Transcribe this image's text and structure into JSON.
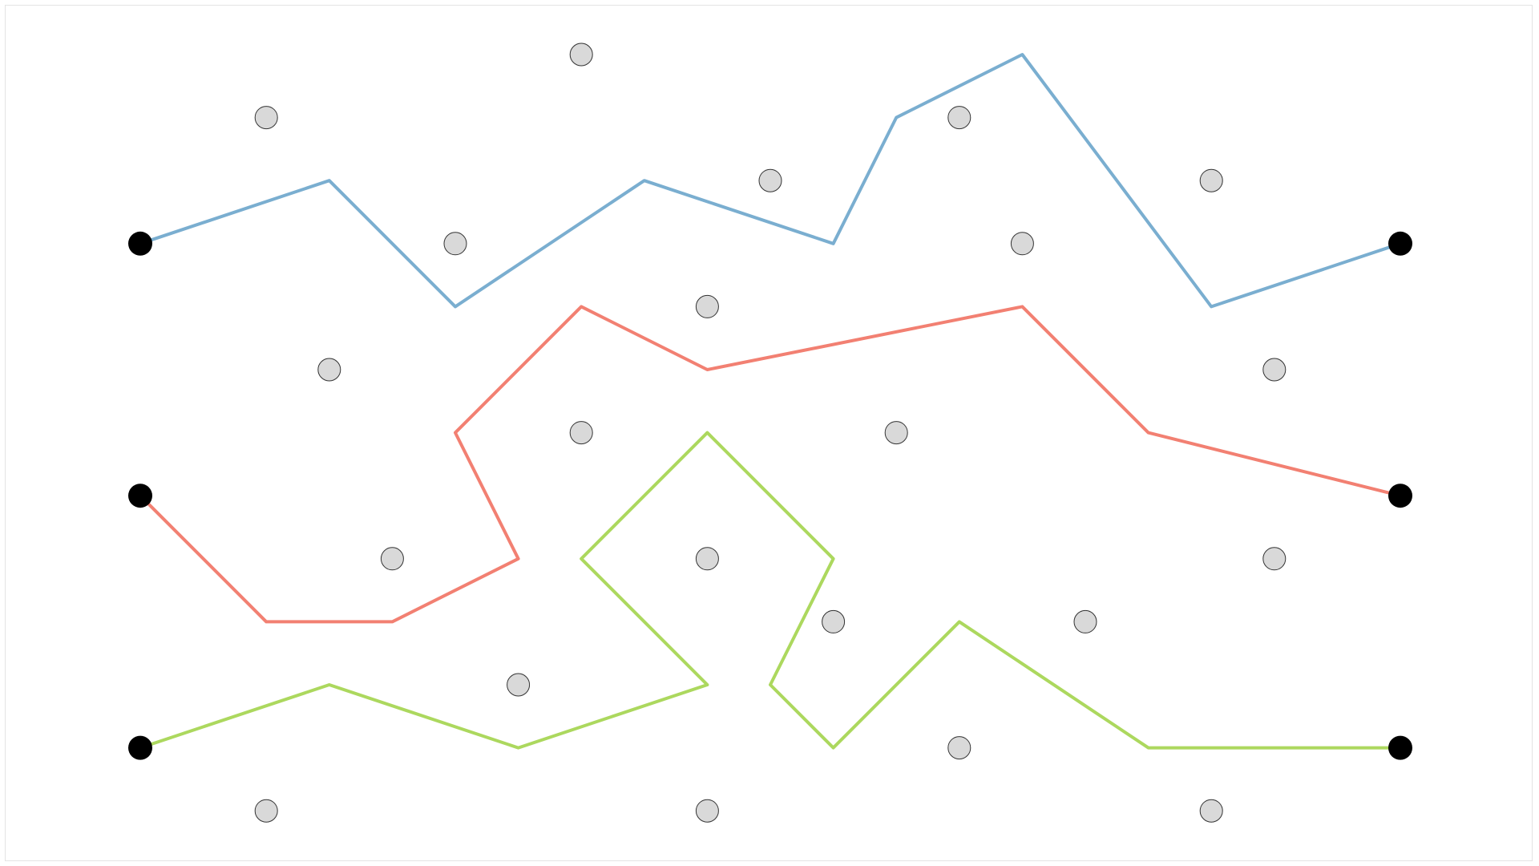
{
  "diagram": {
    "colors": {
      "background": "#ffffff",
      "frame_border": "#e3e3e3",
      "obstacle_fill": "#d9d9d9",
      "obstacle_stroke": "#333333",
      "endpoint_fill": "#000000"
    },
    "endpoints": [
      {
        "id": "left-top",
        "col": 0,
        "row": 3
      },
      {
        "id": "left-middle",
        "col": 0,
        "row": 7
      },
      {
        "id": "left-bottom",
        "col": 0,
        "row": 11
      },
      {
        "id": "right-top",
        "col": 20,
        "row": 3
      },
      {
        "id": "right-middle",
        "col": 20,
        "row": 7
      },
      {
        "id": "right-bottom",
        "col": 20,
        "row": 11
      }
    ],
    "obstacles": [
      {
        "col": 7,
        "row": 0
      },
      {
        "col": 2,
        "row": 1
      },
      {
        "col": 13,
        "row": 1
      },
      {
        "col": 10,
        "row": 2
      },
      {
        "col": 17,
        "row": 2
      },
      {
        "col": 5,
        "row": 3
      },
      {
        "col": 14,
        "row": 3
      },
      {
        "col": 9,
        "row": 4
      },
      {
        "col": 3,
        "row": 5
      },
      {
        "col": 18,
        "row": 5
      },
      {
        "col": 7,
        "row": 6
      },
      {
        "col": 12,
        "row": 6
      },
      {
        "col": 4,
        "row": 8
      },
      {
        "col": 9,
        "row": 8
      },
      {
        "col": 18,
        "row": 8
      },
      {
        "col": 11,
        "row": 9
      },
      {
        "col": 15,
        "row": 9
      },
      {
        "col": 6,
        "row": 10
      },
      {
        "col": 13,
        "row": 11
      },
      {
        "col": 2,
        "row": 12
      },
      {
        "col": 9,
        "row": 12
      },
      {
        "col": 17,
        "row": 12
      }
    ],
    "paths": [
      {
        "id": "blue",
        "color": "#7aaed0",
        "points": [
          [
            0,
            3
          ],
          [
            3,
            2
          ],
          [
            5,
            4
          ],
          [
            8,
            2
          ],
          [
            11,
            3
          ],
          [
            12,
            1
          ],
          [
            14,
            0
          ],
          [
            17,
            4
          ],
          [
            20,
            3
          ]
        ]
      },
      {
        "id": "red",
        "color": "#f28072",
        "points": [
          [
            0,
            7
          ],
          [
            2,
            9
          ],
          [
            4,
            9
          ],
          [
            6,
            8
          ],
          [
            5,
            6
          ],
          [
            7,
            4
          ],
          [
            9,
            5
          ],
          [
            14,
            4
          ],
          [
            16,
            6
          ],
          [
            20,
            7
          ]
        ]
      },
      {
        "id": "green",
        "color": "#acd85e",
        "points": [
          [
            0,
            11
          ],
          [
            3,
            10
          ],
          [
            6,
            11
          ],
          [
            9,
            10
          ],
          [
            7,
            8
          ],
          [
            9,
            6
          ],
          [
            11,
            8
          ],
          [
            10,
            10
          ],
          [
            11,
            11
          ],
          [
            13,
            9
          ],
          [
            16,
            11
          ],
          [
            20,
            11
          ]
        ]
      }
    ]
  }
}
